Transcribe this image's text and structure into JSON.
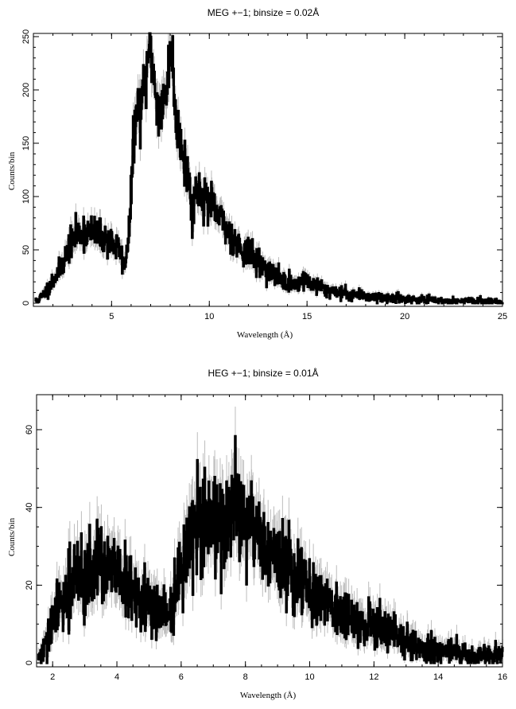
{
  "chart_data": [
    {
      "type": "line",
      "title": "MEG +−1; binsize = 0.02Å",
      "xlabel": "Wavelength (Å)",
      "ylabel": "Counts/bin",
      "xlim": [
        1.0,
        25.0
      ],
      "ylim": [
        -3,
        253
      ],
      "x_ticks": [
        5,
        10,
        15,
        20,
        25
      ],
      "y_ticks": [
        0,
        50,
        100,
        150,
        200,
        250
      ],
      "x_tick_labels": [
        "5",
        "10",
        "15",
        "20",
        "25"
      ],
      "y_tick_labels": [
        "0",
        "50",
        "100",
        "150",
        "200",
        "250"
      ],
      "grid": false,
      "legend": "none",
      "bin_width": 0.02,
      "series": [
        {
          "x": [
            1.1,
            1.3,
            1.5,
            1.8,
            2.0,
            2.3,
            2.6,
            2.8,
            3.0,
            3.2,
            3.4,
            3.6,
            3.8,
            4.0,
            4.2,
            4.4,
            4.6,
            4.8,
            5.0,
            5.2,
            5.4,
            5.55,
            5.65,
            5.8,
            5.95,
            6.05,
            6.15,
            6.3,
            6.5,
            6.7,
            6.85,
            7.0,
            7.2,
            7.4,
            7.6,
            7.8,
            7.95,
            8.1,
            8.25,
            8.4,
            8.6,
            8.8,
            9.0,
            9.1,
            9.2,
            9.35,
            9.5,
            9.7,
            10.0,
            10.3,
            10.6,
            11.0,
            11.4,
            11.8,
            12.2,
            12.6,
            13.0,
            13.5,
            14.0,
            14.5,
            14.8,
            15.0,
            15.5,
            16.0,
            16.5,
            17.0,
            17.5,
            18.0,
            18.5,
            19.0,
            20.0,
            21.0,
            22.0,
            23.0,
            24.0,
            25.0
          ],
          "values": [
            2,
            4,
            8,
            15,
            22,
            30,
            42,
            52,
            58,
            64,
            67,
            68,
            66,
            66,
            64,
            62,
            61,
            59,
            57,
            53,
            50,
            42,
            32,
            56,
            80,
            130,
            165,
            178,
            185,
            200,
            235,
            240,
            205,
            180,
            185,
            195,
            240,
            230,
            175,
            165,
            150,
            125,
            110,
            78,
            100,
            108,
            106,
            100,
            94,
            86,
            78,
            66,
            57,
            49,
            43,
            37,
            31,
            24,
            19,
            17,
            23,
            20,
            16,
            13,
            11,
            9,
            8,
            7,
            6,
            5,
            4,
            3,
            2,
            2,
            2,
            1
          ]
        }
      ]
    },
    {
      "type": "line",
      "title": "HEG +−1; binsize = 0.01Å",
      "xlabel": "Wavelength (Å)",
      "ylabel": "Counts/bin",
      "xlim": [
        1.5,
        16.0
      ],
      "ylim": [
        -1,
        69
      ],
      "x_ticks": [
        2,
        4,
        6,
        8,
        10,
        12,
        14,
        16
      ],
      "y_ticks": [
        0,
        20,
        40,
        60
      ],
      "x_tick_labels": [
        "2",
        "4",
        "6",
        "8",
        "10",
        "12",
        "14",
        "16"
      ],
      "y_tick_labels": [
        "0",
        "20",
        "40",
        "60"
      ],
      "grid": false,
      "legend": "none",
      "bin_width": 0.01,
      "series": [
        {
          "x": [
            1.55,
            1.7,
            1.85,
            2.0,
            2.2,
            2.4,
            2.6,
            2.8,
            3.0,
            3.2,
            3.4,
            3.6,
            3.8,
            4.0,
            4.2,
            4.4,
            4.6,
            4.8,
            5.0,
            5.2,
            5.4,
            5.6,
            5.75,
            5.9,
            6.0,
            6.2,
            6.4,
            6.6,
            6.8,
            7.0,
            7.2,
            7.4,
            7.6,
            7.8,
            8.0,
            8.2,
            8.4,
            8.6,
            8.8,
            9.0,
            9.2,
            9.4,
            9.6,
            9.8,
            10.0,
            10.3,
            10.6,
            11.0,
            11.4,
            11.8,
            12.2,
            12.6,
            13.0,
            13.5,
            14.0,
            14.5,
            15.0,
            15.5,
            16.0
          ],
          "values": [
            1,
            3,
            6,
            10,
            15,
            18,
            20,
            22,
            22,
            24,
            24,
            25,
            24,
            22,
            20,
            19,
            17,
            16,
            15,
            14,
            13,
            12,
            14,
            20,
            26,
            30,
            32,
            35,
            38,
            38,
            36,
            36,
            37,
            38,
            37,
            34,
            33,
            31,
            28,
            27,
            25,
            24,
            22,
            21,
            19,
            17,
            15,
            13,
            11,
            10,
            9,
            7,
            5,
            4,
            3,
            3,
            2,
            2,
            2
          ]
        }
      ]
    }
  ]
}
